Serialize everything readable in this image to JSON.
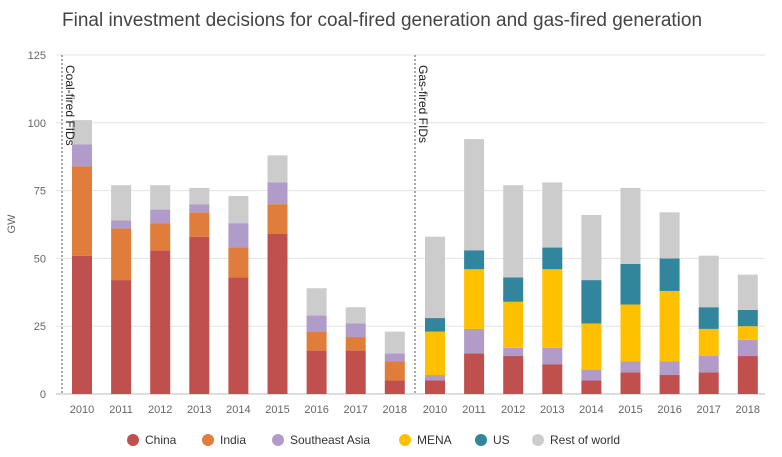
{
  "chart_data": {
    "type": "bar",
    "stacked": true,
    "title": "Final investment decisions for coal-fired generation and gas-fired generation",
    "ylabel": "GW",
    "ylim": [
      0,
      125
    ],
    "yticks": [
      0,
      25,
      50,
      75,
      100,
      125
    ],
    "grid": true,
    "legend_position": "bottom",
    "colors": {
      "China": "#c0504d",
      "India": "#e07d3a",
      "Southeast Asia": "#b19bc9",
      "MENA": "#ffc000",
      "US": "#31859c",
      "Rest of world": "#cccccc"
    },
    "series_order": [
      "China",
      "India",
      "Southeast Asia",
      "MENA",
      "US",
      "Rest of world"
    ],
    "panels": [
      {
        "label": "Coal-fired FIDs",
        "categories": [
          "2010",
          "2011",
          "2012",
          "2013",
          "2014",
          "2015",
          "2016",
          "2017",
          "2018"
        ],
        "series": [
          {
            "name": "China",
            "values": [
              51,
              42,
              53,
              58,
              43,
              59,
              16,
              16,
              5
            ]
          },
          {
            "name": "India",
            "values": [
              33,
              19,
              10,
              9,
              11,
              11,
              7,
              5,
              7
            ]
          },
          {
            "name": "Southeast Asia",
            "values": [
              8,
              3,
              5,
              3,
              9,
              8,
              6,
              5,
              3
            ]
          },
          {
            "name": "MENA",
            "values": [
              0,
              0,
              0,
              0,
              0,
              0,
              0,
              0,
              0
            ]
          },
          {
            "name": "US",
            "values": [
              0,
              0,
              0,
              0,
              0,
              0,
              0,
              0,
              0
            ]
          },
          {
            "name": "Rest of world",
            "values": [
              9,
              13,
              9,
              6,
              10,
              10,
              10,
              6,
              8
            ]
          }
        ]
      },
      {
        "label": "Gas-fired FIDs",
        "categories": [
          "2010",
          "2011",
          "2012",
          "2013",
          "2014",
          "2015",
          "2016",
          "2017",
          "2018"
        ],
        "series": [
          {
            "name": "China",
            "values": [
              5,
              15,
              14,
              11,
              5,
              8,
              7,
              8,
              14
            ]
          },
          {
            "name": "India",
            "values": [
              0,
              0,
              0,
              0,
              0,
              0,
              0,
              0,
              0
            ]
          },
          {
            "name": "Southeast Asia",
            "values": [
              2,
              9,
              3,
              6,
              4,
              4,
              5,
              6,
              6
            ]
          },
          {
            "name": "MENA",
            "values": [
              16,
              22,
              17,
              29,
              17,
              21,
              26,
              10,
              5
            ]
          },
          {
            "name": "US",
            "values": [
              5,
              7,
              9,
              8,
              16,
              15,
              12,
              8,
              6
            ]
          },
          {
            "name": "Rest of world",
            "values": [
              30,
              41,
              34,
              24,
              24,
              28,
              17,
              19,
              13
            ]
          }
        ]
      }
    ]
  }
}
